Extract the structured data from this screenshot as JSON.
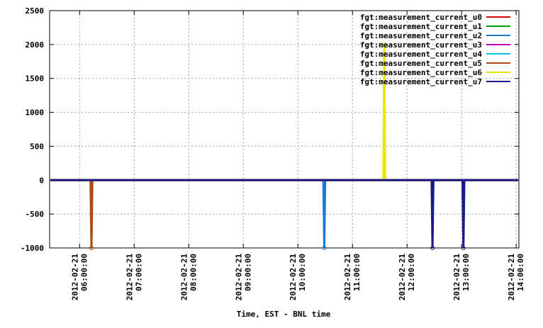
{
  "chart_data": {
    "type": "line",
    "x_label": "Time, EST - BNL time",
    "x": [
      "2012-02-21 05:28:00",
      "2012-02-21 06:12:00",
      "2012-02-21 06:13:00",
      "2012-02-21 06:14:00",
      "2012-02-21 10:28:00",
      "2012-02-21 10:29:00",
      "2012-02-21 10:30:00",
      "2012-02-21 11:34:00",
      "2012-02-21 11:35:00",
      "2012-02-21 11:36:00",
      "2012-02-21 12:27:00",
      "2012-02-21 12:28:00",
      "2012-02-21 12:29:00",
      "2012-02-21 13:01:00",
      "2012-02-21 13:02:00",
      "2012-02-21 13:03:00",
      "2012-02-21 14:02:00"
    ],
    "series": [
      {
        "name": "fgt:measurement_current_u0",
        "color": "#e00000",
        "values": [
          0,
          0,
          0,
          0,
          0,
          0,
          0,
          0,
          0,
          0,
          0,
          0,
          0,
          0,
          0,
          0,
          0
        ]
      },
      {
        "name": "fgt:measurement_current_u1",
        "color": "#00a000",
        "values": [
          0,
          0,
          0,
          0,
          0,
          0,
          0,
          0,
          0,
          0,
          0,
          0,
          0,
          0,
          0,
          0,
          0
        ]
      },
      {
        "name": "fgt:measurement_current_u2",
        "color": "#1f78d0",
        "values": [
          0,
          0,
          0,
          0,
          0,
          -1000,
          0,
          0,
          0,
          0,
          0,
          0,
          0,
          0,
          0,
          0,
          0
        ]
      },
      {
        "name": "fgt:measurement_current_u3",
        "color": "#c000c0",
        "values": [
          0,
          0,
          0,
          0,
          0,
          0,
          0,
          0,
          0,
          0,
          0,
          0,
          0,
          0,
          0,
          0,
          0
        ]
      },
      {
        "name": "fgt:measurement_current_u4",
        "color": "#00c8d8",
        "values": [
          0,
          0,
          0,
          0,
          0,
          0,
          0,
          0,
          0,
          0,
          0,
          0,
          0,
          0,
          0,
          0,
          0
        ]
      },
      {
        "name": "fgt:measurement_current_u5",
        "color": "#b04a10",
        "values": [
          0,
          0,
          -1000,
          0,
          0,
          0,
          0,
          0,
          0,
          0,
          0,
          0,
          0,
          0,
          0,
          0,
          0
        ]
      },
      {
        "name": "fgt:measurement_current_u6",
        "color": "#e8e800",
        "values": [
          0,
          0,
          0,
          0,
          0,
          0,
          0,
          0,
          2000,
          0,
          0,
          0,
          0,
          0,
          0,
          0,
          0
        ]
      },
      {
        "name": "fgt:measurement_current_u7",
        "color": "#1a1a8c",
        "values": [
          0,
          0,
          0,
          0,
          0,
          0,
          0,
          0,
          0,
          0,
          0,
          -1000,
          0,
          0,
          -1000,
          0,
          0
        ]
      }
    ],
    "xlim": [
      "2012-02-21 05:27:00",
      "2012-02-21 14:03:00"
    ],
    "xticks": [
      "2012-02-21 06:00:00",
      "2012-02-21 07:00:00",
      "2012-02-21 08:00:00",
      "2012-02-21 09:00:00",
      "2012-02-21 10:00:00",
      "2012-02-21 11:00:00",
      "2012-02-21 12:00:00",
      "2012-02-21 13:00:00",
      "2012-02-21 14:00:00"
    ],
    "ylim": [
      -1000,
      2500
    ],
    "yticks": [
      -1000,
      -500,
      0,
      500,
      1000,
      1500,
      2000,
      2500
    ],
    "grid": true,
    "legend": "top-right"
  }
}
